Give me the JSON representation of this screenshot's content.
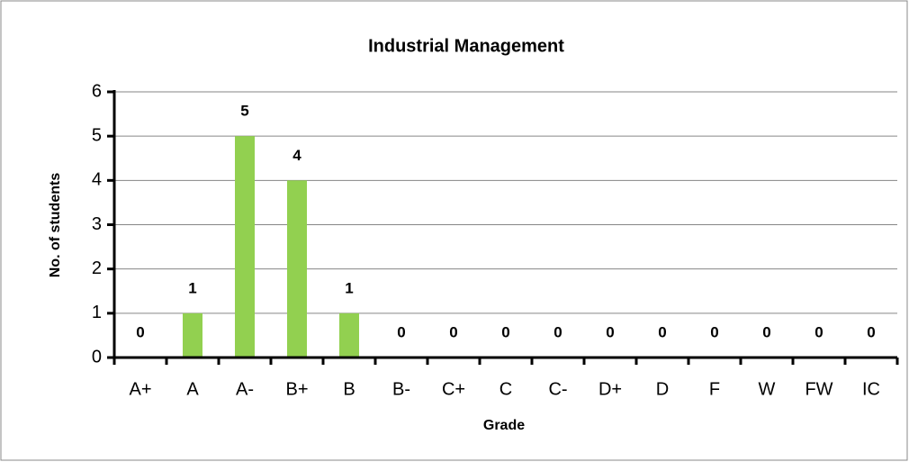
{
  "chart_data": {
    "type": "bar",
    "title": "Industrial Management",
    "x_label": "Grade",
    "y_label": "No. of students",
    "categories": [
      "A+",
      "A",
      "A-",
      "B+",
      "B",
      "B-",
      "C+",
      "C",
      "C-",
      "D+",
      "D",
      "F",
      "W",
      "FW",
      "IC"
    ],
    "values": [
      0,
      1,
      5,
      4,
      1,
      0,
      0,
      0,
      0,
      0,
      0,
      0,
      0,
      0,
      0
    ],
    "color": "#92d050",
    "ylim": [
      0,
      6
    ],
    "yticks": [
      0,
      1,
      2,
      3,
      4,
      5,
      6
    ],
    "grid": true
  }
}
